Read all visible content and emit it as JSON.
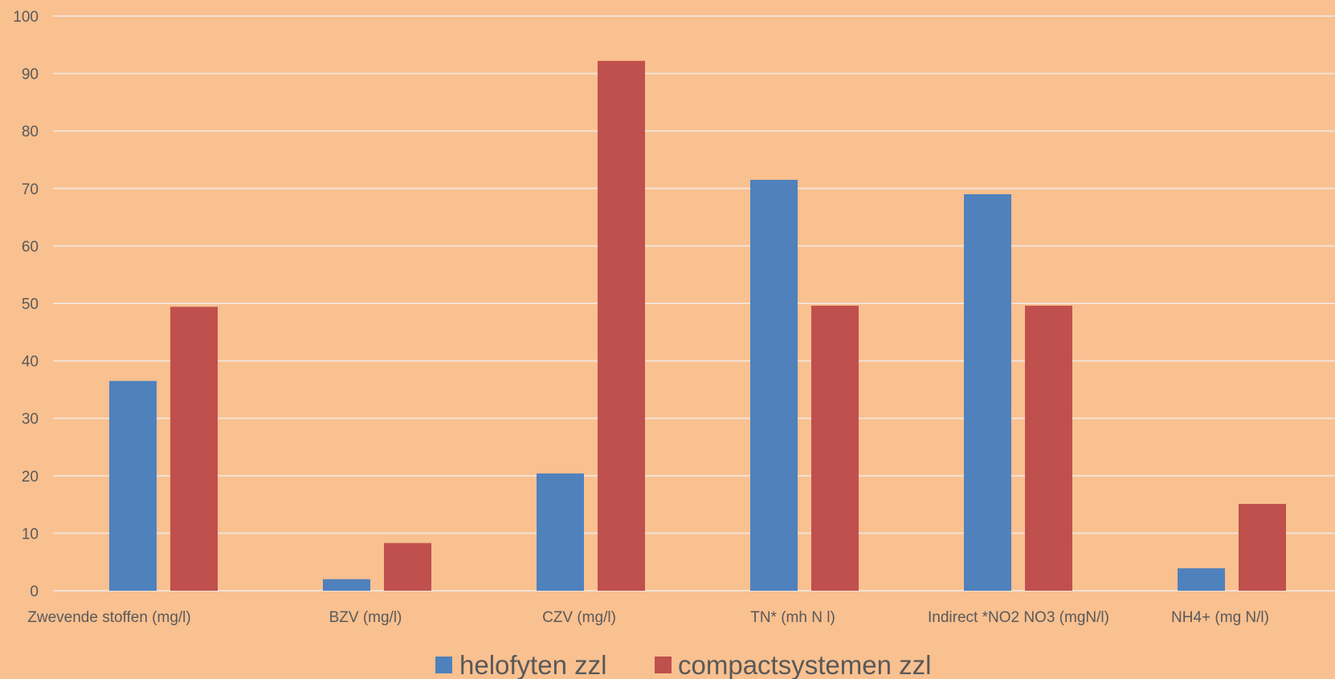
{
  "chart_data": {
    "type": "bar",
    "categories": [
      "Zwevende stoffen (mg/l)",
      "BZV (mg/l)",
      "CZV (mg/l)",
      "TN* (mh N l)",
      "Indirect *NO2 NO3 (mgN/l)",
      "NH4+ (mg N/l)"
    ],
    "series": [
      {
        "name": "helofyten zzl",
        "color": "#4f81bd",
        "values": [
          36.5,
          2,
          20.4,
          71.5,
          69,
          3.9
        ]
      },
      {
        "name": "compactsystemen zzl",
        "color": "#c0504d",
        "values": [
          49.4,
          8.3,
          92.2,
          49.6,
          49.6,
          15.1
        ]
      }
    ],
    "ylim": [
      0,
      100
    ],
    "yticks": [
      0,
      10,
      20,
      30,
      40,
      50,
      60,
      70,
      80,
      90,
      100
    ],
    "grid": true,
    "legend": "bottom-center",
    "colors": {
      "background": "#f9c090",
      "gridline": "#f2e2d4",
      "text": "#595959"
    }
  }
}
